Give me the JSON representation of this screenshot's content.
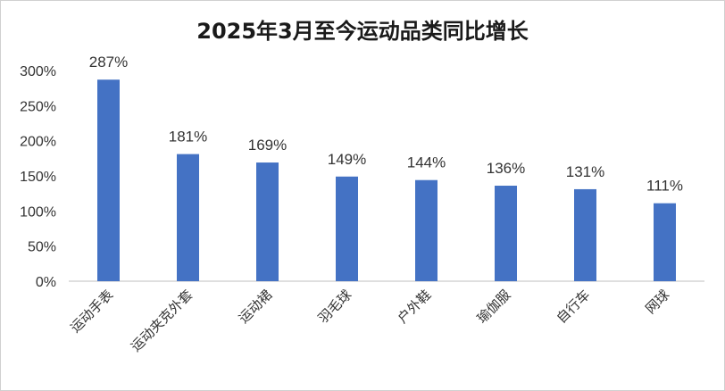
{
  "chart_data": {
    "type": "bar",
    "title": "2025年3月至今运动品类同比增长",
    "categories": [
      "运动手表",
      "运动夹克外套",
      "运动裙",
      "羽毛球",
      "户外鞋",
      "瑜伽服",
      "自行车",
      "网球"
    ],
    "values": [
      287,
      181,
      169,
      149,
      144,
      136,
      131,
      111
    ],
    "data_labels": [
      "287%",
      "181%",
      "169%",
      "149%",
      "144%",
      "136%",
      "131%",
      "111%"
    ],
    "yticks": [
      "0%",
      "50%",
      "100%",
      "150%",
      "200%",
      "250%",
      "300%"
    ],
    "ylim": [
      0,
      300
    ],
    "xlabel": "",
    "ylabel": "",
    "grid": false,
    "legend": "none",
    "bar_color": "#4472C4"
  }
}
